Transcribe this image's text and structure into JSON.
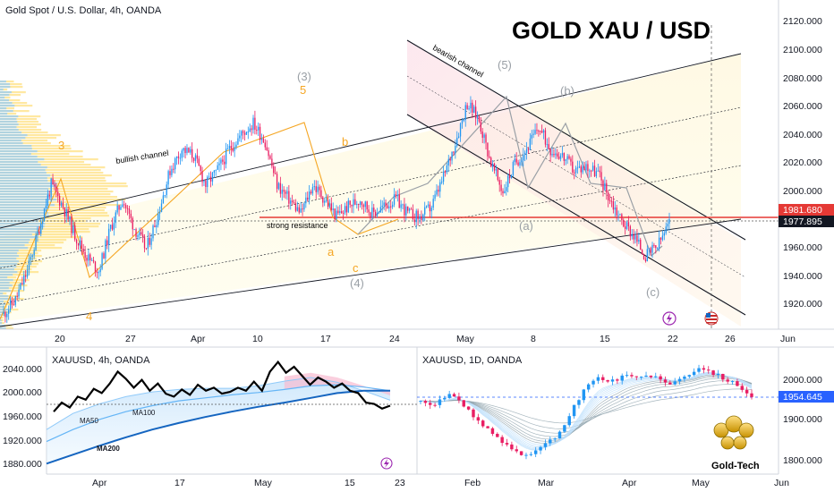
{
  "header": {
    "symbol_label": "Gold Spot / U.S. Dollar, 4h, OANDA",
    "big_title": "GOLD   XAU / USD"
  },
  "colors": {
    "bull_candle": "#2196f3",
    "bear_candle": "#e91e63",
    "resistance_line": "#e53935",
    "channel_line": "#131722",
    "wave_orange": "#f5a623",
    "wave_gray": "#9aa0a6",
    "price_box_red": "#e53935",
    "price_box_black": "#131722",
    "price_box_blue": "#2962ff",
    "ma50": "#90caf9",
    "ma100": "#64b5f6",
    "ma200": "#1565c0"
  },
  "annotations": {
    "bullish_channel": "bullish channel",
    "bearish_channel": "bearish channel",
    "strong_resistance": "strong resistance"
  },
  "waves": [
    {
      "id": "w3o",
      "text": "3",
      "color": "orange"
    },
    {
      "id": "w4o",
      "text": "4",
      "color": "orange"
    },
    {
      "id": "w3g",
      "text": "(3)",
      "color": "gray"
    },
    {
      "id": "w5o",
      "text": "5",
      "color": "orange"
    },
    {
      "id": "wbo",
      "text": "b",
      "color": "orange"
    },
    {
      "id": "wao",
      "text": "a",
      "color": "orange"
    },
    {
      "id": "wco",
      "text": "c",
      "color": "orange"
    },
    {
      "id": "w4g",
      "text": "(4)",
      "color": "gray"
    },
    {
      "id": "w5g",
      "text": "(5)",
      "color": "gray"
    },
    {
      "id": "wbg",
      "text": "(b)",
      "color": "gray"
    },
    {
      "id": "wag",
      "text": "(a)",
      "color": "gray"
    },
    {
      "id": "wcg",
      "text": "(c)",
      "color": "gray"
    }
  ],
  "main_chart": {
    "y_ticks": [
      "2120.000",
      "2100.000",
      "2080.000",
      "2060.000",
      "2040.000",
      "2020.000",
      "2000.000",
      "1960.000",
      "1940.000",
      "1920.000"
    ],
    "x_ticks": [
      "20",
      "27",
      "Apr",
      "10",
      "17",
      "24",
      "May",
      "8",
      "15",
      "22",
      "26",
      "Jun"
    ],
    "price_resistance": "1981.680",
    "price_last": "1977.895"
  },
  "sub_left": {
    "label": "XAUUSD, 4h, OANDA",
    "y_ticks": [
      "2040.000",
      "2000.000",
      "1960.000",
      "1920.000",
      "1880.000"
    ],
    "x_ticks": [
      "Apr",
      "17",
      "May",
      "15",
      "23"
    ],
    "ma_labels": [
      "MA50",
      "MA100",
      "MA200"
    ]
  },
  "sub_right": {
    "label": "XAUUSD, 1D, OANDA",
    "y_ticks": [
      "2000.000",
      "1900.000",
      "1800.000"
    ],
    "x_ticks": [
      "Feb",
      "Mar",
      "Apr",
      "May",
      "Jun"
    ],
    "price_last": "1954.645"
  },
  "logo": {
    "text": "Gold-Tech"
  },
  "chart_data": [
    {
      "type": "candlestick",
      "title": "GOLD   XAU / USD",
      "subtitle": "Gold Spot / U.S. Dollar, 4h, OANDA",
      "ylim": [
        1910,
        2128
      ],
      "x_ticks": [
        "20",
        "27",
        "Apr",
        "10",
        "17",
        "24",
        "May",
        "8",
        "15",
        "22",
        "26",
        "Jun"
      ],
      "path_close": [
        1915,
        1925,
        1945,
        1975,
        2005,
        1990,
        1970,
        1955,
        1945,
        1975,
        1995,
        1975,
        1960,
        1985,
        2015,
        2030,
        2025,
        2005,
        2015,
        2030,
        2040,
        2048,
        2035,
        2005,
        1995,
        1985,
        2005,
        1995,
        1983,
        1990,
        1995,
        1985,
        1990,
        1995,
        1985,
        1982,
        1990,
        2010,
        2035,
        2062,
        2050,
        2020,
        2000,
        2020,
        2030,
        2045,
        2030,
        2025,
        2015,
        2018,
        2013,
        1995,
        1980,
        1970,
        1955,
        1962,
        1978
      ],
      "resistance": 1981.68,
      "last_price": 1977.895
    },
    {
      "type": "line",
      "title": "XAUUSD, 4h, OANDA",
      "ylim": [
        1870,
        2055
      ],
      "series": [
        {
          "name": "XAUUSD",
          "values": [
            1965,
            1980,
            1972,
            1990,
            1985,
            2003,
            1996,
            2012,
            2032,
            2020,
            2005,
            2018,
            2000,
            2012,
            1995,
            1990,
            2002,
            1993,
            2010,
            2000,
            2005,
            1995,
            1998,
            2005,
            2000,
            2015,
            2000,
            2032,
            2048,
            2030,
            2040,
            2025,
            2010,
            2022,
            2015,
            2005,
            2012,
            2000,
            1996,
            1980,
            1978,
            1970,
            1975
          ]
        },
        {
          "name": "MA50",
          "values": [
            1935,
            1962,
            1978,
            1990,
            1998,
            2002,
            2004,
            2004,
            2008,
            2016,
            2022,
            2014,
            2000,
            1984
          ]
        },
        {
          "name": "MA100",
          "values": [
            1915,
            1935,
            1952,
            1965,
            1975,
            1983,
            1988,
            1993,
            1997,
            2002,
            2008,
            2010,
            2006,
            2000
          ]
        },
        {
          "name": "MA200",
          "values": [
            1878,
            1893,
            1908,
            1922,
            1935,
            1946,
            1956,
            1965,
            1973,
            1980,
            1988,
            1996,
            2000,
            2000
          ]
        }
      ],
      "x_ticks": [
        "Apr",
        "17",
        "May",
        "15",
        "23"
      ]
    },
    {
      "type": "candlestick",
      "title": "XAUUSD, 1D, OANDA",
      "ylim": [
        1790,
        2070
      ],
      "path_close": [
        1945,
        1935,
        1950,
        1965,
        1942,
        1912,
        1885,
        1862,
        1842,
        1825,
        1812,
        1822,
        1842,
        1852,
        1885,
        1942,
        1978,
        2002,
        1998,
        1995,
        2015,
        2005,
        2012,
        2000,
        1990,
        2000,
        2015,
        2032,
        2020,
        2006,
        1994,
        1980,
        1955
      ],
      "last_price": 1954.645,
      "x_ticks": [
        "Feb",
        "Mar",
        "Apr",
        "May",
        "Jun"
      ]
    }
  ]
}
